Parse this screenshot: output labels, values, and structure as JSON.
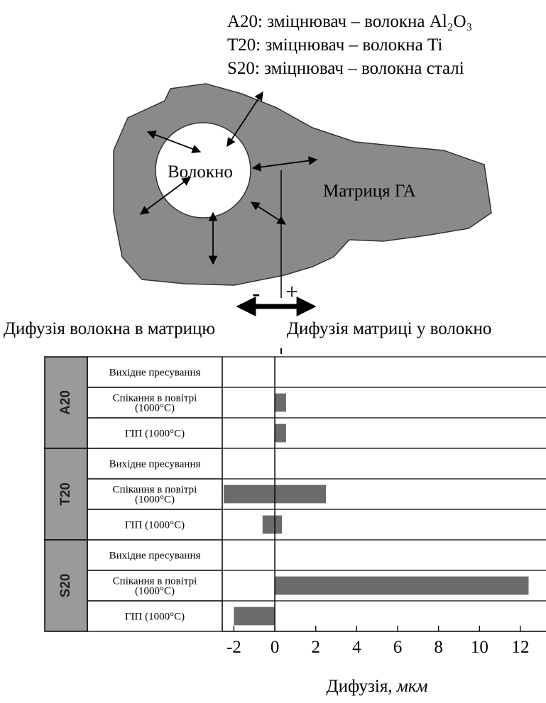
{
  "diagram": {
    "legend": [
      "A20: зміцнювач – волокна Al₂O₃",
      "T20: зміцнювач – волокна Ti",
      "S20: зміцнювач – волокна сталі"
    ],
    "fiber_label": "Волокно",
    "matrix_label": "Матриця ГА",
    "minus": "-",
    "plus": "+",
    "left_caption": "Дифузія волокна в матрицю",
    "right_caption": "Дифузія матриці у волокно"
  },
  "chart_data": {
    "type": "range_bar",
    "groups": [
      "A20",
      "T20",
      "S20"
    ],
    "categories": [
      "Вихідне пресування",
      "Спікання в повітрі\n(1000°C)",
      "ГІП (1000°C)",
      "Вихідне пресування",
      "Спікання в повітрі\n(1000°C)",
      "ГІП (1000°C)",
      "Вихідне пресування",
      "Спікання в повітрі\n(1000°C)",
      "ГІП (1000°C)"
    ],
    "starts": [
      null,
      0,
      0,
      null,
      -2.5,
      -0.6,
      null,
      0,
      -2
    ],
    "ends": [
      null,
      0.55,
      0.55,
      null,
      2.5,
      0.35,
      null,
      12.4,
      0
    ],
    "color": "#6b6b6b",
    "xlabel": "Дифузія, ",
    "xlabel_unit": "мкм",
    "xlim": [
      -2.57,
      13.25
    ],
    "xticks": [
      -2,
      0,
      2,
      4,
      6,
      8,
      10,
      12
    ]
  }
}
